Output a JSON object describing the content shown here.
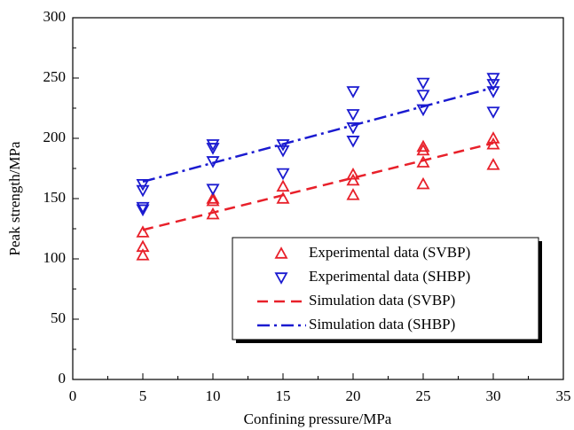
{
  "chart_data": {
    "type": "scatter",
    "xlabel": "Confining pressure/MPa",
    "ylabel": "Peak strength/MPa",
    "xlim": [
      0,
      35
    ],
    "xticks": [
      0,
      5,
      10,
      15,
      20,
      25,
      30,
      35
    ],
    "ylim": [
      0,
      300
    ],
    "yticks": [
      0,
      50,
      100,
      150,
      200,
      250,
      300
    ],
    "series": [
      {
        "name": "Experimental data (SVBP)",
        "color": "#e8202a",
        "kind": "scatter",
        "marker": "triangle-up",
        "x": [
          5,
          5,
          5,
          10,
          10,
          10,
          15,
          15,
          20,
          20,
          20,
          25,
          25,
          25,
          25,
          30,
          30,
          30
        ],
        "values": [
          122,
          110,
          103,
          150,
          148,
          137,
          160,
          150,
          170,
          165,
          153,
          193,
          190,
          180,
          162,
          200,
          195,
          178
        ]
      },
      {
        "name": "Experimental data (SHBP)",
        "color": "#1a1ad0",
        "kind": "scatter",
        "marker": "triangle-down",
        "x": [
          5,
          5,
          5,
          5,
          10,
          10,
          10,
          10,
          15,
          15,
          15,
          20,
          20,
          20,
          20,
          25,
          25,
          25,
          30,
          30,
          30,
          30
        ],
        "values": [
          162,
          157,
          143,
          141,
          195,
          192,
          181,
          158,
          195,
          190,
          171,
          239,
          220,
          209,
          198,
          246,
          236,
          224,
          250,
          245,
          239,
          222
        ]
      },
      {
        "name": "Simulation data (SVBP)",
        "color": "#e8202a",
        "kind": "line",
        "dash": "dashed",
        "x": [
          5,
          30
        ],
        "values": [
          124,
          196
        ]
      },
      {
        "name": "Simulation data (SHBP)",
        "color": "#1a1ad0",
        "kind": "line",
        "dash": "dashdot",
        "x": [
          5,
          30
        ],
        "values": [
          164,
          242
        ]
      }
    ]
  }
}
